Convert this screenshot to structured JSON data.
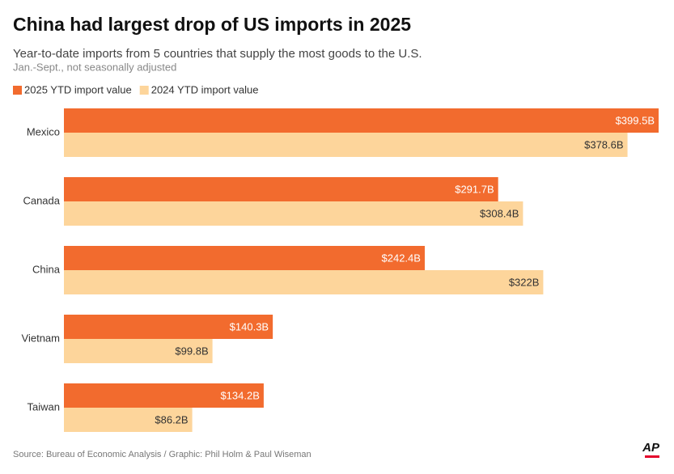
{
  "chart_data": {
    "type": "bar",
    "orientation": "horizontal",
    "title": "China had largest drop of US imports in 2025",
    "subtitle": "Year-to-date imports from 5 countries that supply the most goods to the U.S.",
    "note": "Jan.-Sept., not seasonally adjusted",
    "categories": [
      "Mexico",
      "Canada",
      "China",
      "Vietnam",
      "Taiwan"
    ],
    "series": [
      {
        "name": "2025 YTD import value",
        "color": "#f26b2e",
        "label_color": "#ffffff",
        "values": [
          399.5,
          291.7,
          242.4,
          140.3,
          134.2
        ],
        "value_labels": [
          "$399.5B",
          "$291.7B",
          "$242.4B",
          "$140.3B",
          "$134.2B"
        ]
      },
      {
        "name": "2024 YTD import value",
        "color": "#fdd59b",
        "label_color": "#333333",
        "values": [
          378.6,
          308.4,
          322,
          99.8,
          86.2
        ],
        "value_labels": [
          "$378.6B",
          "$308.4B",
          "$322B",
          "$99.8B",
          "$86.2B"
        ]
      }
    ],
    "source": "Source: Bureau of Economic Analysis / Graphic: Phil Holm & Paul Wiseman",
    "logo": "AP"
  }
}
